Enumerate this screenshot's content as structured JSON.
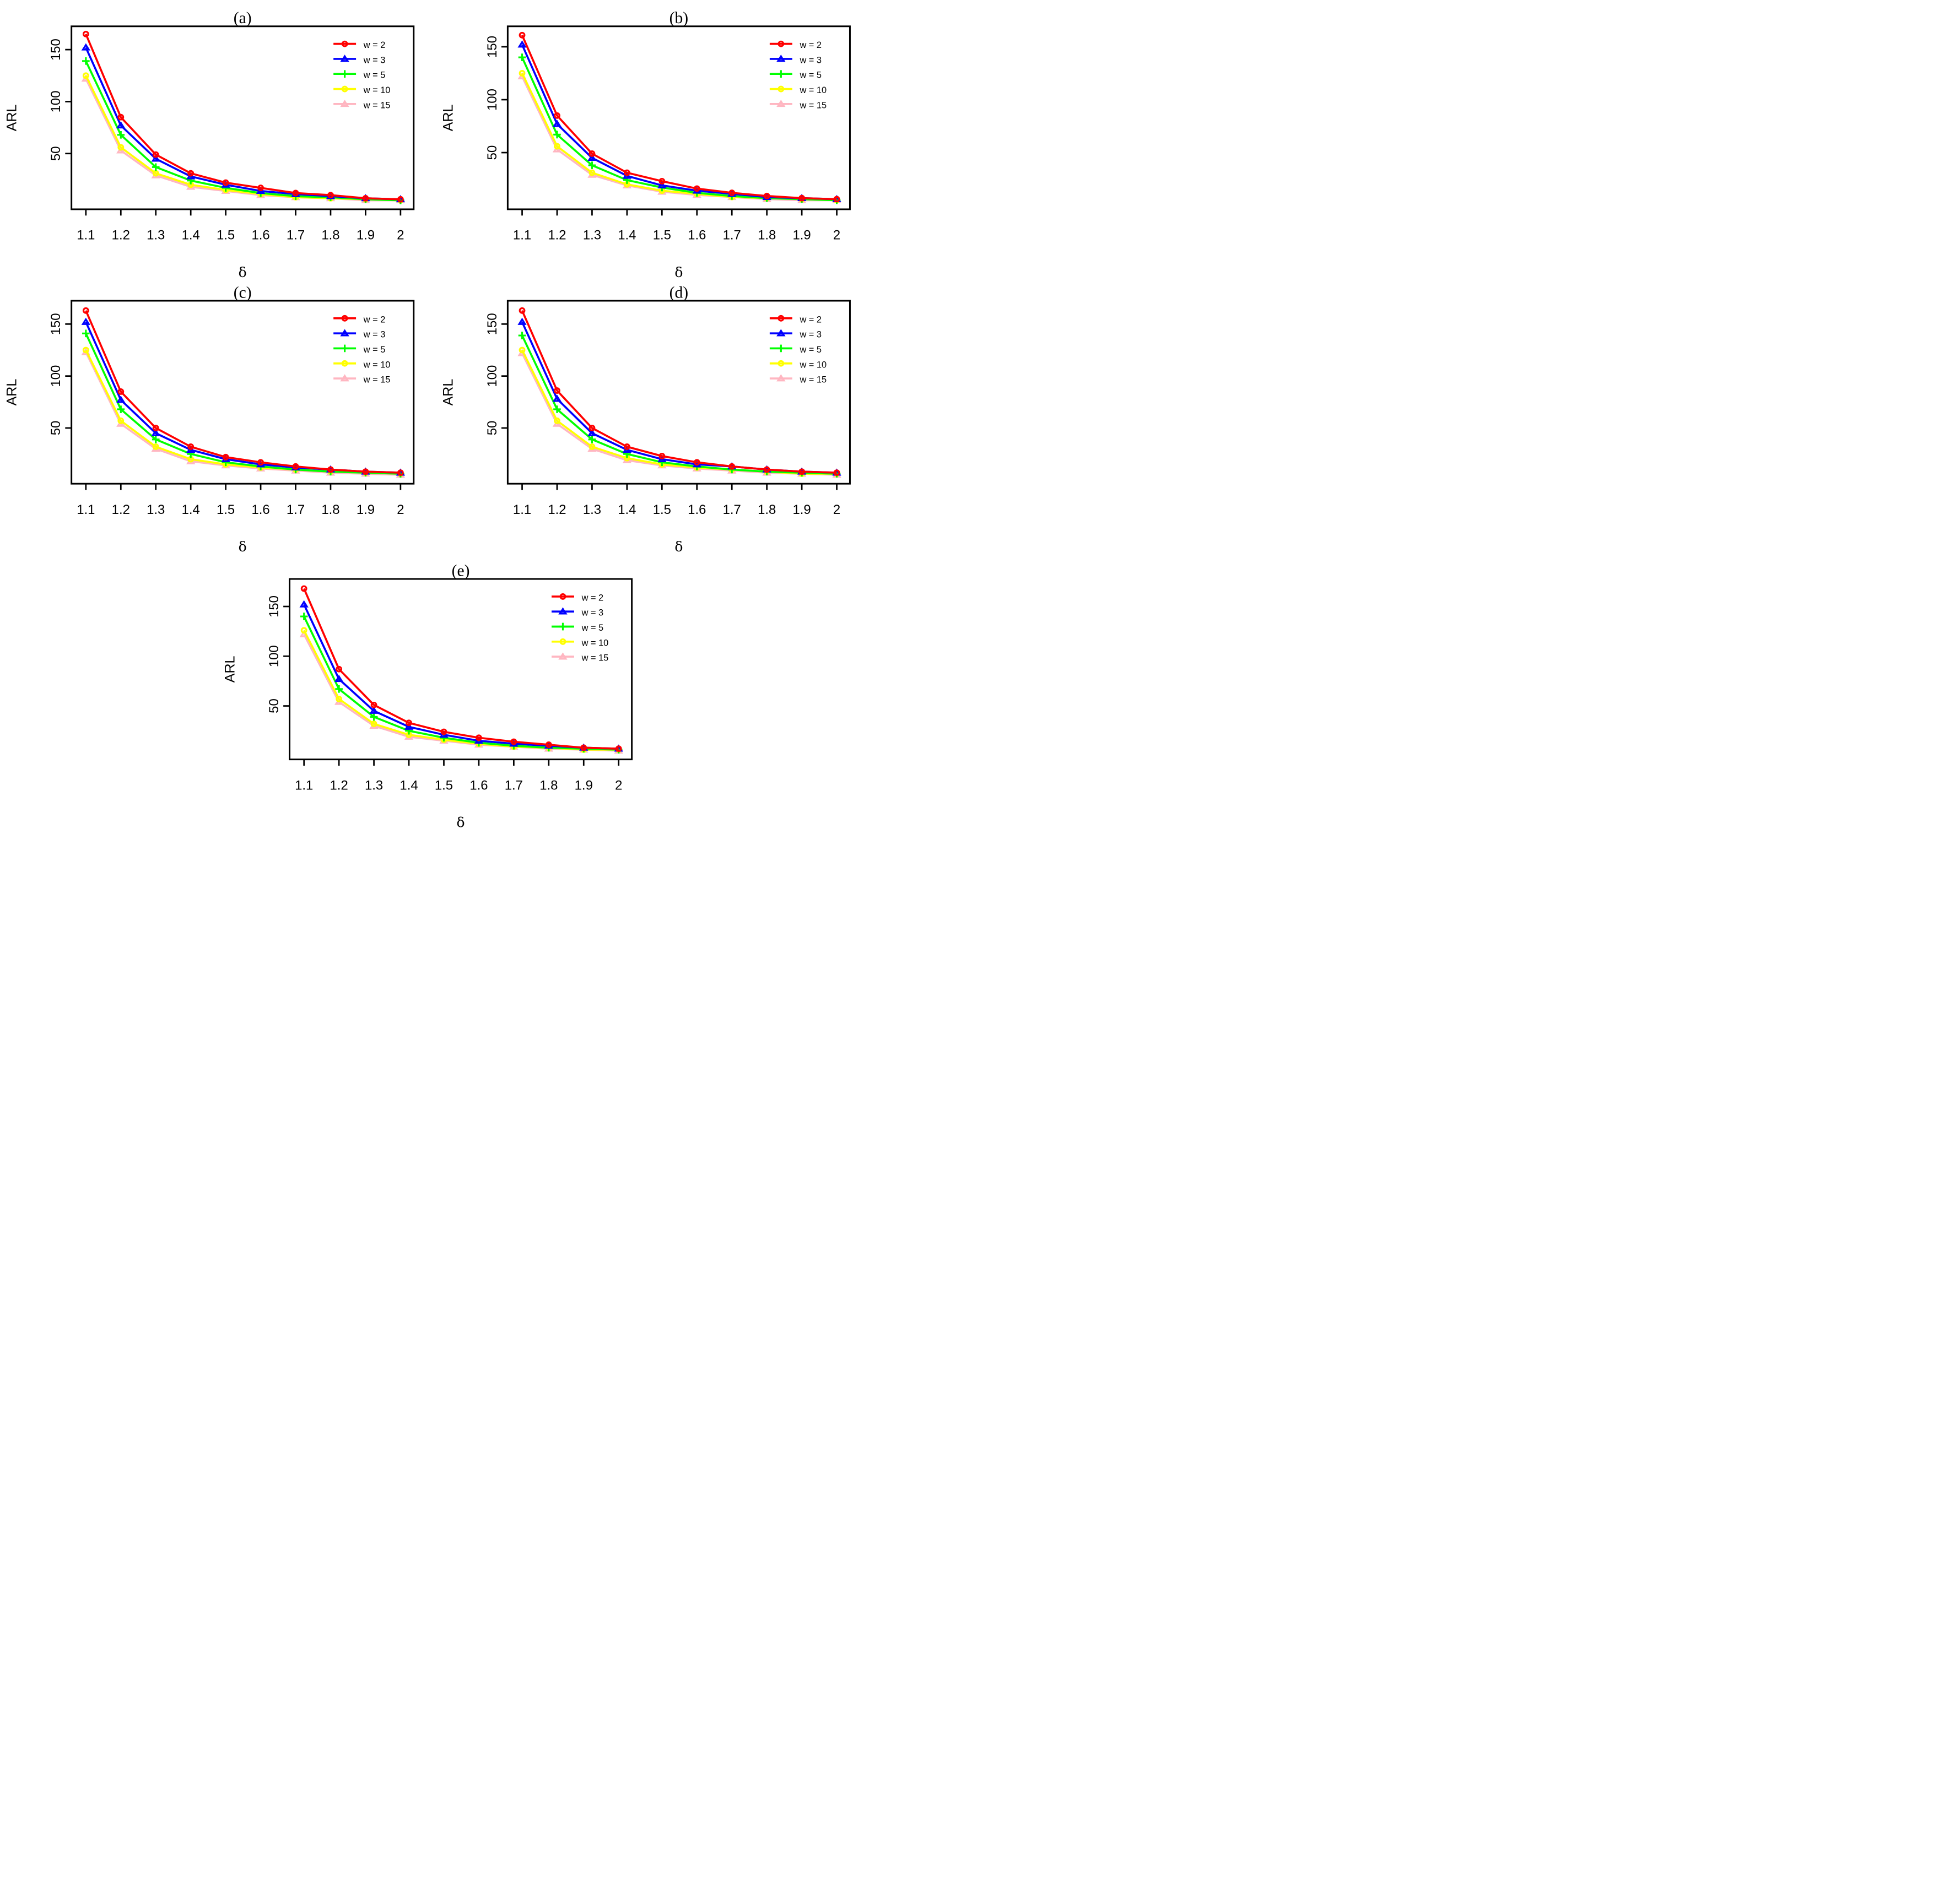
{
  "colors": {
    "w2": "#ff0000",
    "w3": "#0000ff",
    "w5": "#00ff00",
    "w10": "#ffff00",
    "w15": "#ffb6c1"
  },
  "chart_data": [
    {
      "type": "line",
      "title": "(a)",
      "xlabel": "δ",
      "ylabel": "ARL",
      "categories": [
        "1.1",
        "1.2",
        "1.3",
        "1.4",
        "1.5",
        "1.6",
        "1.7",
        "1.8",
        "1.9",
        "2"
      ],
      "yticks": [
        "50",
        "100",
        "150"
      ],
      "ylim": [
        0,
        167
      ],
      "series": [
        {
          "name": "w = 2",
          "color": "#ff0000",
          "marker": "circle",
          "values": [
            165,
            85,
            49,
            31,
            22,
            17,
            12,
            10,
            7,
            6
          ]
        },
        {
          "name": "w = 3",
          "color": "#0000ff",
          "marker": "triangle",
          "values": [
            152,
            77,
            45,
            28,
            20,
            14,
            11,
            9,
            7,
            6
          ]
        },
        {
          "name": "w = 5",
          "color": "#00ff00",
          "marker": "plus",
          "values": [
            139,
            68,
            37,
            24,
            17,
            12,
            9,
            8,
            6,
            5
          ]
        },
        {
          "name": "w = 10",
          "color": "#ffff00",
          "marker": "circle",
          "values": [
            125,
            56,
            31,
            20,
            15,
            11,
            8,
            7,
            6,
            5
          ]
        },
        {
          "name": "w = 15",
          "color": "#ffb6c1",
          "marker": "triangle",
          "values": [
            122,
            53,
            29,
            18,
            14,
            10,
            8,
            7,
            5,
            5
          ]
        }
      ]
    },
    {
      "type": "line",
      "title": "(b)",
      "xlabel": "δ",
      "ylabel": "ARL",
      "categories": [
        "1.1",
        "1.2",
        "1.3",
        "1.4",
        "1.5",
        "1.6",
        "1.7",
        "1.8",
        "1.9",
        "2"
      ],
      "yticks": [
        "50",
        "100",
        "150"
      ],
      "ylim": [
        0,
        164
      ],
      "series": [
        {
          "name": "w = 2",
          "color": "#ff0000",
          "marker": "circle",
          "values": [
            161,
            85,
            49,
            31,
            23,
            16,
            12,
            9,
            7,
            6
          ]
        },
        {
          "name": "w = 3",
          "color": "#0000ff",
          "marker": "triangle",
          "values": [
            152,
            77,
            45,
            28,
            19,
            14,
            11,
            8,
            7,
            6
          ]
        },
        {
          "name": "w = 5",
          "color": "#00ff00",
          "marker": "plus",
          "values": [
            140,
            67,
            38,
            24,
            17,
            12,
            9,
            7,
            6,
            5
          ]
        },
        {
          "name": "w = 10",
          "color": "#ffff00",
          "marker": "circle",
          "values": [
            125,
            56,
            31,
            20,
            14,
            11,
            8,
            7,
            6,
            5
          ]
        },
        {
          "name": "w = 15",
          "color": "#ffb6c1",
          "marker": "triangle",
          "values": [
            122,
            53,
            29,
            19,
            13,
            10,
            8,
            6,
            5,
            5
          ]
        }
      ]
    },
    {
      "type": "line",
      "title": "(c)",
      "xlabel": "δ",
      "ylabel": "ARL",
      "categories": [
        "1.1",
        "1.2",
        "1.3",
        "1.4",
        "1.5",
        "1.6",
        "1.7",
        "1.8",
        "1.9",
        "2"
      ],
      "yticks": [
        "50",
        "100",
        "150"
      ],
      "ylim": [
        0,
        167
      ],
      "series": [
        {
          "name": "w = 2",
          "color": "#ff0000",
          "marker": "circle",
          "values": [
            163,
            85,
            50,
            32,
            22,
            17,
            13,
            10,
            8,
            7
          ]
        },
        {
          "name": "w = 3",
          "color": "#0000ff",
          "marker": "triangle",
          "values": [
            152,
            77,
            45,
            29,
            20,
            15,
            12,
            10,
            8,
            7
          ]
        },
        {
          "name": "w = 5",
          "color": "#00ff00",
          "marker": "plus",
          "values": [
            141,
            68,
            39,
            25,
            17,
            13,
            10,
            8,
            7,
            6
          ]
        },
        {
          "name": "w = 10",
          "color": "#ffff00",
          "marker": "circle",
          "values": [
            125,
            57,
            32,
            20,
            15,
            12,
            10,
            8,
            7,
            6
          ]
        },
        {
          "name": "w = 15",
          "color": "#ffb6c1",
          "marker": "triangle",
          "values": [
            123,
            54,
            30,
            18,
            14,
            11,
            9,
            7,
            6,
            5
          ]
        }
      ]
    },
    {
      "type": "line",
      "title": "(d)",
      "xlabel": "δ",
      "ylabel": "ARL",
      "categories": [
        "1.1",
        "1.2",
        "1.3",
        "1.4",
        "1.5",
        "1.6",
        "1.7",
        "1.8",
        "1.9",
        "2"
      ],
      "yticks": [
        "50",
        "100",
        "150"
      ],
      "ylim": [
        0,
        167
      ],
      "series": [
        {
          "name": "w = 2",
          "color": "#ff0000",
          "marker": "circle",
          "values": [
            163,
            86,
            50,
            32,
            23,
            17,
            13,
            10,
            8,
            7
          ]
        },
        {
          "name": "w = 3",
          "color": "#0000ff",
          "marker": "triangle",
          "values": [
            152,
            78,
            45,
            29,
            20,
            15,
            13,
            10,
            8,
            7
          ]
        },
        {
          "name": "w = 5",
          "color": "#00ff00",
          "marker": "plus",
          "values": [
            139,
            68,
            39,
            25,
            17,
            13,
            10,
            8,
            7,
            6
          ]
        },
        {
          "name": "w = 10",
          "color": "#ffff00",
          "marker": "circle",
          "values": [
            125,
            57,
            32,
            21,
            15,
            12,
            10,
            8,
            6,
            6
          ]
        },
        {
          "name": "w = 15",
          "color": "#ffb6c1",
          "marker": "triangle",
          "values": [
            122,
            54,
            30,
            19,
            14,
            11,
            9,
            7,
            6,
            5
          ]
        }
      ]
    },
    {
      "type": "line",
      "title": "(e)",
      "xlabel": "δ",
      "ylabel": "ARL",
      "categories": [
        "1.1",
        "1.2",
        "1.3",
        "1.4",
        "1.5",
        "1.6",
        "1.7",
        "1.8",
        "1.9",
        "2"
      ],
      "yticks": [
        "50",
        "100",
        "150"
      ],
      "ylim": [
        0,
        172
      ],
      "series": [
        {
          "name": "w = 2",
          "color": "#ff0000",
          "marker": "circle",
          "values": [
            168,
            87,
            51,
            33,
            24,
            18,
            14,
            11,
            8,
            7
          ]
        },
        {
          "name": "w = 3",
          "color": "#0000ff",
          "marker": "triangle",
          "values": [
            152,
            77,
            45,
            29,
            21,
            15,
            12,
            10,
            8,
            7
          ]
        },
        {
          "name": "w = 5",
          "color": "#00ff00",
          "marker": "plus",
          "values": [
            140,
            67,
            39,
            25,
            18,
            13,
            10,
            8,
            7,
            6
          ]
        },
        {
          "name": "w = 10",
          "color": "#ffff00",
          "marker": "circle",
          "values": [
            126,
            57,
            32,
            21,
            16,
            12,
            9,
            8,
            6,
            6
          ]
        },
        {
          "name": "w = 15",
          "color": "#ffb6c1",
          "marker": "triangle",
          "values": [
            122,
            54,
            30,
            19,
            15,
            11,
            9,
            7,
            6,
            5
          ]
        }
      ]
    }
  ]
}
